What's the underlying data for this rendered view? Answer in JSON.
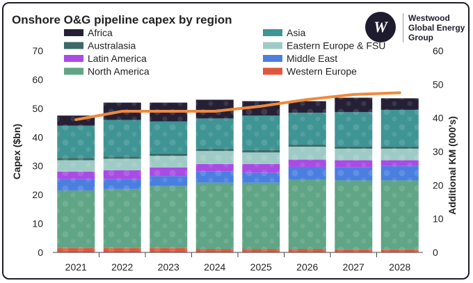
{
  "chart_data": {
    "type": "bar",
    "stacked": true,
    "title": "Onshore O&G pipeline capex by region",
    "xlabel": "",
    "ylabel": "Capex ($bn)",
    "y2label": "Additional KM (000's)",
    "ylim": [
      0,
      70
    ],
    "y2lim": [
      0,
      60
    ],
    "yticks": [
      0,
      10,
      20,
      30,
      40,
      50,
      60,
      70
    ],
    "y2ticks": [
      0,
      10,
      20,
      30,
      40,
      50,
      60
    ],
    "categories": [
      "2021",
      "2022",
      "2023",
      "2024",
      "2025",
      "2026",
      "2027",
      "2028"
    ],
    "grid": false,
    "legend_position": "top",
    "series": [
      {
        "name": "Western Europe",
        "color": "#e2573b",
        "values": [
          1.5,
          1.5,
          1.5,
          1.2,
          1.2,
          1.2,
          1.0,
          1.0
        ]
      },
      {
        "name": "North America",
        "color": "#5fa586",
        "values": [
          20.0,
          20.5,
          21.5,
          23.0,
          23.0,
          24.0,
          24.0,
          24.0
        ]
      },
      {
        "name": "Middle East",
        "color": "#4a7fe0",
        "values": [
          4.0,
          3.5,
          3.5,
          4.0,
          3.5,
          4.5,
          4.5,
          5.0
        ]
      },
      {
        "name": "Latin America",
        "color": "#a94be4",
        "values": [
          2.5,
          3.0,
          3.0,
          2.5,
          3.0,
          2.5,
          2.5,
          2.0
        ]
      },
      {
        "name": "Eastern Europe & FSU",
        "color": "#9fcbc6",
        "values": [
          4.0,
          4.0,
          4.0,
          4.5,
          4.0,
          4.5,
          4.0,
          4.0
        ]
      },
      {
        "name": "Australasia",
        "color": "#3c6a66",
        "values": [
          0.8,
          0.7,
          0.8,
          0.8,
          0.8,
          0.7,
          0.7,
          0.7
        ]
      },
      {
        "name": "Asia",
        "color": "#3f9494",
        "values": [
          11.2,
          12.8,
          11.2,
          10.5,
          12.0,
          11.1,
          12.0,
          12.8
        ]
      },
      {
        "name": "Africa",
        "color": "#252036",
        "values": [
          3.5,
          6.0,
          6.5,
          6.5,
          5.0,
          4.0,
          5.0,
          4.0
        ]
      }
    ],
    "line": {
      "name": "",
      "axis": "right",
      "color": "#f08a3c",
      "values": [
        39.5,
        42.0,
        42.0,
        42.0,
        43.5,
        45.5,
        47.0,
        47.5
      ]
    }
  },
  "logo": {
    "line1": "Westwood",
    "line2": "Global Energy",
    "line3": "Group",
    "mark": "W"
  },
  "legend_order": [
    "Africa",
    "Asia",
    "Australasia",
    "Eastern Europe & FSU",
    "Latin America",
    "Middle East",
    "North America",
    "Western Europe"
  ]
}
